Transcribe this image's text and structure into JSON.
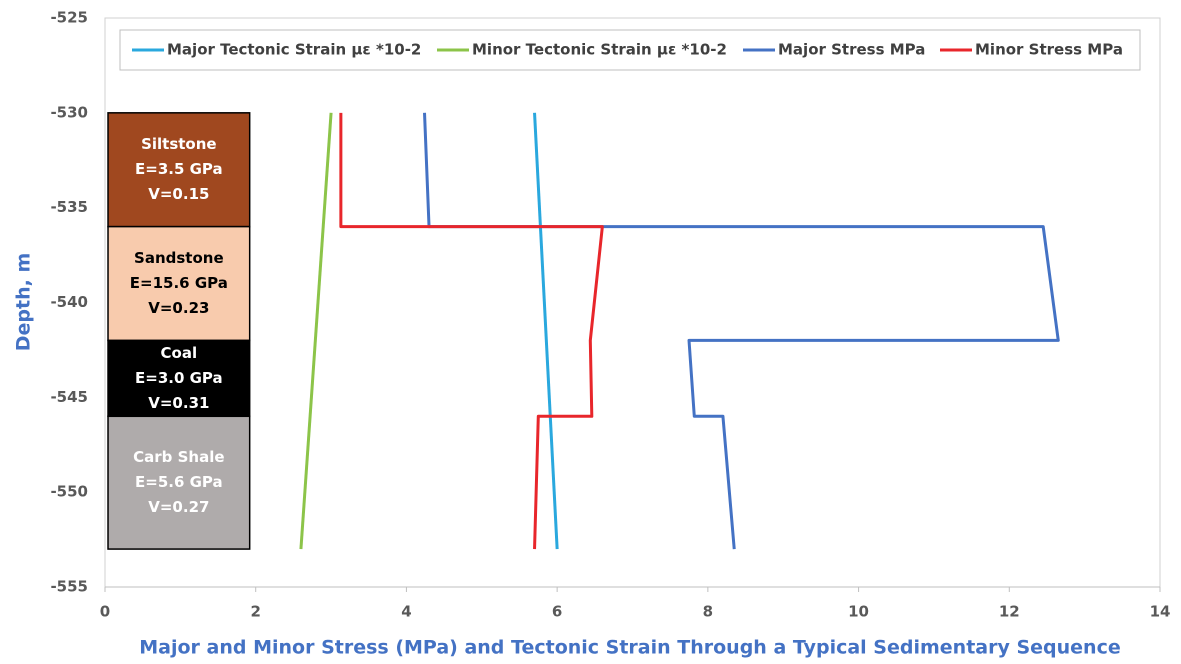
{
  "chart_data": {
    "type": "line",
    "xlabel": "Major and Minor Stress (MPa) and Tectonic Strain Through a Typical Sedimentary Sequence",
    "ylabel": "Depth, m",
    "xlim": [
      0,
      14
    ],
    "xticks": [
      0,
      2,
      4,
      6,
      8,
      10,
      12,
      14
    ],
    "ylim": [
      -555,
      -525
    ],
    "yticks": [
      -555,
      -550,
      -545,
      -540,
      -535,
      -530,
      -525
    ],
    "grid": false,
    "legend": "top",
    "series": [
      {
        "name": "Major Tectonic Strain με *10-2",
        "color": "#2aa8de",
        "x": [
          5.7,
          6.0
        ],
        "values": [
          -530,
          -553
        ]
      },
      {
        "name": "Minor Tectonic Strain με *10-2",
        "color": "#8cc449",
        "x": [
          3.0,
          2.6
        ],
        "values": [
          -530,
          -553
        ]
      },
      {
        "name": "Major Stress MPa",
        "color": "#4472c4",
        "x": [
          4.24,
          4.3,
          12.45,
          12.65,
          7.75,
          7.82,
          8.2,
          8.35
        ],
        "values": [
          -530,
          -536,
          -536,
          -542,
          -542,
          -546,
          -546,
          -553
        ]
      },
      {
        "name": "Minor Stress MPa",
        "color": "#e8262b",
        "x": [
          3.13,
          3.13,
          6.6,
          6.44,
          6.46,
          5.75,
          5.7
        ],
        "values": [
          -530,
          -536,
          -536,
          -542,
          -546,
          -546,
          -553
        ]
      }
    ],
    "layers_x": [
      0.04,
      1.92
    ],
    "layers": [
      {
        "name": "Siltstone",
        "modulus": "E=3.5 GPa",
        "poisson": "V=0.15",
        "top": -530,
        "bottom": -536,
        "color": "#a0481f",
        "text_color": "#ffffff"
      },
      {
        "name": "Sandstone",
        "modulus": "E=15.6 GPa",
        "poisson": "V=0.23",
        "top": -536,
        "bottom": -542,
        "color": "#f8cbad",
        "text_color": "#000000"
      },
      {
        "name": "Coal",
        "modulus": "E=3.0 GPa",
        "poisson": "V=0.31",
        "top": -542,
        "bottom": -546,
        "color": "#000000",
        "text_color": "#ffffff"
      },
      {
        "name": "Carb Shale",
        "modulus": "E=5.6 GPa",
        "poisson": "V=0.27",
        "top": -546,
        "bottom": -553,
        "color": "#afabab",
        "text_color": "#ffffff"
      }
    ]
  }
}
